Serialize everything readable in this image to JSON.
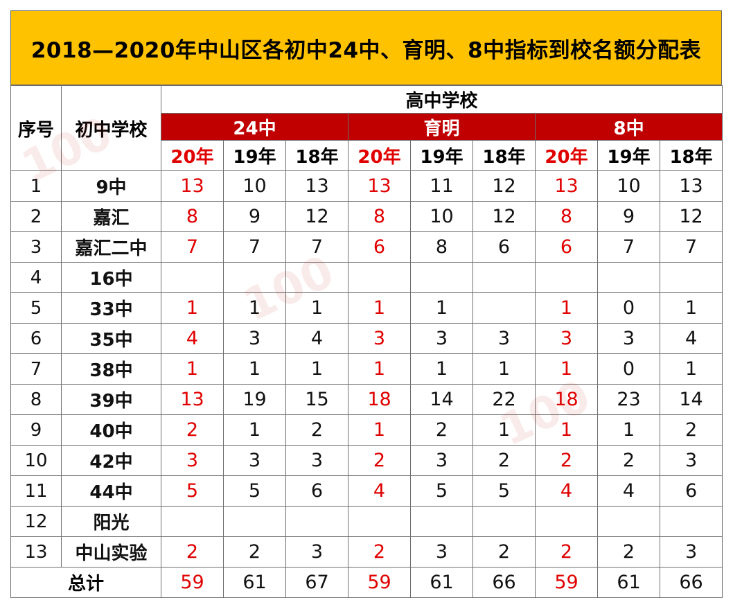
{
  "title": "2018—2020年中山区各初中24中、育明、8中指标到校名额分配表",
  "headers": {
    "index": "序号",
    "junior_school": "初中学校",
    "senior_school": "高中学校",
    "groups": [
      "24中",
      "育明",
      "8中"
    ],
    "years": [
      "20年",
      "19年",
      "18年"
    ]
  },
  "rows": [
    {
      "idx": "1",
      "school": "9中",
      "v": [
        "13",
        "10",
        "13",
        "13",
        "11",
        "12",
        "13",
        "10",
        "13"
      ]
    },
    {
      "idx": "2",
      "school": "嘉汇",
      "v": [
        "8",
        "9",
        "12",
        "8",
        "10",
        "12",
        "8",
        "9",
        "12"
      ]
    },
    {
      "idx": "3",
      "school": "嘉汇二中",
      "v": [
        "7",
        "7",
        "7",
        "6",
        "8",
        "6",
        "6",
        "7",
        "7"
      ]
    },
    {
      "idx": "4",
      "school": "16中",
      "v": [
        "",
        "",
        "",
        "",
        "",
        "",
        "",
        "",
        ""
      ]
    },
    {
      "idx": "5",
      "school": "33中",
      "v": [
        "1",
        "1",
        "1",
        "1",
        "1",
        "",
        "1",
        "0",
        "1"
      ]
    },
    {
      "idx": "6",
      "school": "35中",
      "v": [
        "4",
        "3",
        "4",
        "3",
        "3",
        "3",
        "3",
        "3",
        "4"
      ]
    },
    {
      "idx": "7",
      "school": "38中",
      "v": [
        "1",
        "1",
        "1",
        "1",
        "1",
        "1",
        "1",
        "0",
        "1"
      ]
    },
    {
      "idx": "8",
      "school": "39中",
      "v": [
        "13",
        "19",
        "15",
        "18",
        "14",
        "22",
        "18",
        "23",
        "14"
      ]
    },
    {
      "idx": "9",
      "school": "40中",
      "v": [
        "2",
        "1",
        "2",
        "1",
        "2",
        "1",
        "1",
        "1",
        "2"
      ]
    },
    {
      "idx": "10",
      "school": "42中",
      "v": [
        "3",
        "3",
        "3",
        "2",
        "3",
        "2",
        "2",
        "2",
        "3"
      ]
    },
    {
      "idx": "11",
      "school": "44中",
      "v": [
        "5",
        "5",
        "6",
        "4",
        "5",
        "5",
        "4",
        "4",
        "6"
      ]
    },
    {
      "idx": "12",
      "school": "阳光",
      "v": [
        "",
        "",
        "",
        "",
        "",
        "",
        "",
        "",
        ""
      ]
    },
    {
      "idx": "13",
      "school": "中山实验",
      "v": [
        "2",
        "2",
        "3",
        "2",
        "3",
        "2",
        "2",
        "2",
        "3"
      ]
    }
  ],
  "total": {
    "label": "总计",
    "v": [
      "59",
      "61",
      "67",
      "59",
      "61",
      "66",
      "59",
      "61",
      "66"
    ]
  },
  "colors": {
    "title_bg": "#fec200",
    "group_bg": "#c00000",
    "highlight_red": "#e00000"
  }
}
